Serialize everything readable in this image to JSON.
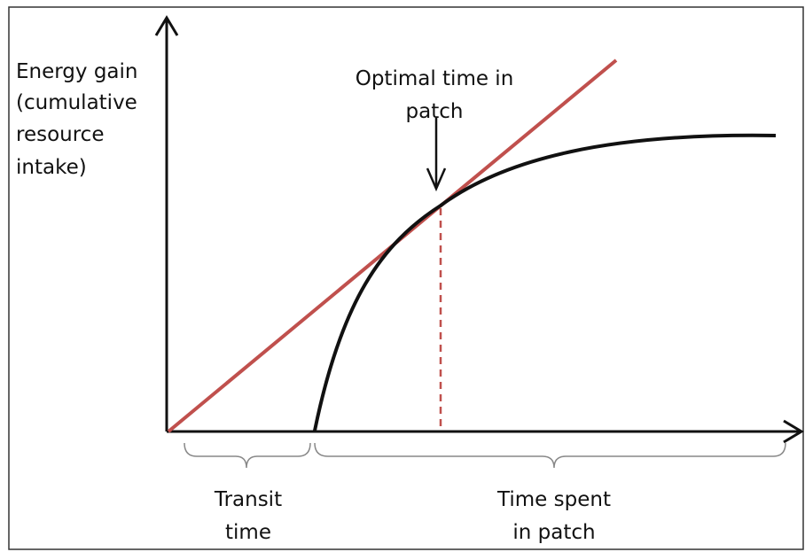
{
  "y_axis_label": [
    "Energy gain",
    "(cumulative",
    "resource",
    "intake)"
  ],
  "optimal_label": [
    "Optimal time in",
    "patch"
  ],
  "transit_label": [
    "Transit",
    "time"
  ],
  "patch_label": [
    "Time spent",
    "in patch"
  ]
}
